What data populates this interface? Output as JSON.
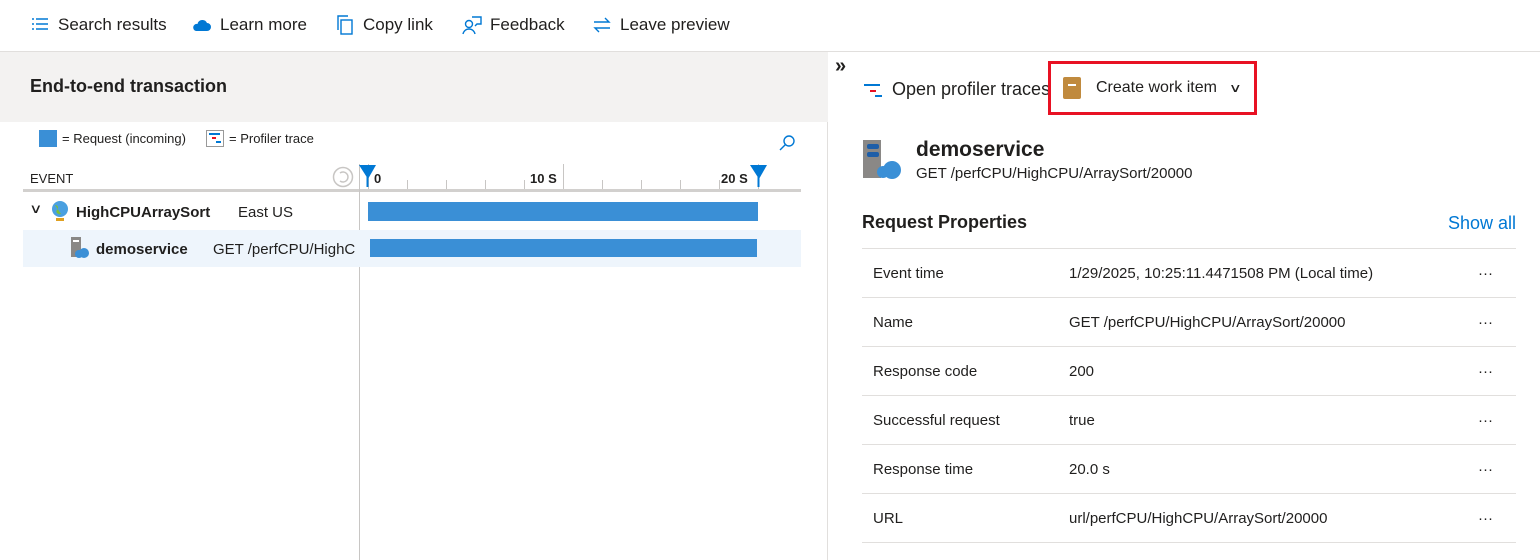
{
  "toolbar": {
    "items": [
      {
        "label": "Search results",
        "icon": "list-icon"
      },
      {
        "label": "Learn more",
        "icon": "cloud-icon"
      },
      {
        "label": "Copy link",
        "icon": "copy-icon"
      },
      {
        "label": "Feedback",
        "icon": "feedback-icon"
      },
      {
        "label": "Leave preview",
        "icon": "swap-arrows-icon"
      }
    ]
  },
  "left": {
    "title": "End-to-end transaction",
    "legend": {
      "request": "= Request (incoming)",
      "profiler": "= Profiler trace"
    },
    "event_header": "EVENT",
    "timeline": {
      "labels": [
        "0",
        "10 S",
        "20 S"
      ],
      "max_s": 20.0
    },
    "rows": [
      {
        "name": "HighCPUArraySort",
        "detail": "East US",
        "start_s": 0,
        "duration_s": 20.0
      },
      {
        "name": "demoservice",
        "detail": "GET /perfCPU/HighC",
        "start_s": 0,
        "duration_s": 20.0,
        "selected": true
      }
    ]
  },
  "right": {
    "collapse": "»",
    "open_profiler": "Open profiler traces",
    "create_work_item": "Create work item",
    "service": {
      "name": "demoservice",
      "request": "GET /perfCPU/HighCPU/ArraySort/20000"
    },
    "section_title": "Request Properties",
    "show_all": "Show all",
    "properties": [
      {
        "label": "Event time",
        "value": "1/29/2025, 10:25:11.4471508 PM (Local time)"
      },
      {
        "label": "Name",
        "value": "GET /perfCPU/HighCPU/ArraySort/20000"
      },
      {
        "label": "Response code",
        "value": "200"
      },
      {
        "label": "Successful request",
        "value": "true"
      },
      {
        "label": "Response time",
        "value": "20.0 s"
      },
      {
        "label": "URL",
        "value": "url/perfCPU/HighCPU/ArraySort/20000"
      }
    ],
    "more": "···"
  },
  "colors": {
    "accent": "#0078d4",
    "bar": "#3a8fd6",
    "highlight": "#e81123",
    "selected_row": "#eef5fc"
  }
}
